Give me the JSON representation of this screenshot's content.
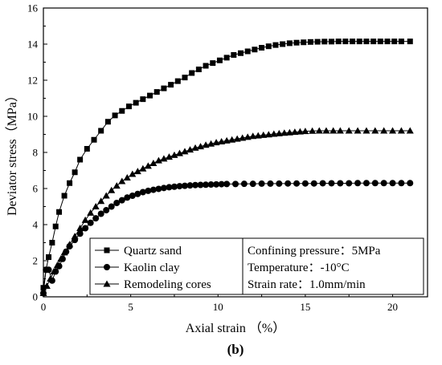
{
  "chart_data": {
    "type": "line",
    "xlabel": "Axial strain （%）",
    "ylabel": "Deviator stress（MPa）",
    "panel_label": "(b)",
    "xlim": [
      0,
      22
    ],
    "ylim": [
      0,
      16
    ],
    "x_ticks": [
      0,
      5,
      10,
      15,
      20
    ],
    "y_ticks": [
      0,
      2,
      4,
      6,
      8,
      10,
      12,
      14,
      16
    ],
    "grid": false,
    "legend_position": "bottom-left",
    "series": [
      {
        "name": "Quartz sand",
        "marker": "square",
        "x": [
          0,
          0.15,
          0.3,
          0.5,
          0.7,
          0.9,
          1.2,
          1.5,
          1.8,
          2.1,
          2.5,
          2.9,
          3.3,
          3.7,
          4.1,
          4.5,
          4.9,
          5.3,
          5.7,
          6.1,
          6.5,
          6.9,
          7.3,
          7.7,
          8.1,
          8.5,
          8.9,
          9.3,
          9.7,
          10.1,
          10.5,
          10.9,
          11.3,
          11.7,
          12.1,
          12.5,
          12.9,
          13.3,
          13.7,
          14.1,
          14.5,
          14.9,
          15.3,
          15.7,
          16.1,
          16.5,
          16.9,
          17.3,
          17.7,
          18.1,
          18.5,
          18.9,
          19.3,
          19.7,
          20.1,
          20.5,
          21
        ],
        "y": [
          0.5,
          1.5,
          2.2,
          3.0,
          3.9,
          4.7,
          5.6,
          6.3,
          6.9,
          7.6,
          8.2,
          8.7,
          9.2,
          9.7,
          10.05,
          10.3,
          10.55,
          10.75,
          10.95,
          11.15,
          11.35,
          11.55,
          11.75,
          11.95,
          12.15,
          12.4,
          12.6,
          12.8,
          12.95,
          13.1,
          13.25,
          13.4,
          13.5,
          13.6,
          13.7,
          13.8,
          13.88,
          13.95,
          14.0,
          14.05,
          14.08,
          14.1,
          14.12,
          14.13,
          14.14,
          14.14,
          14.15,
          14.15,
          14.15,
          14.15,
          14.15,
          14.15,
          14.15,
          14.15,
          14.15,
          14.15,
          14.15
        ]
      },
      {
        "name": "Kaolin clay",
        "marker": "circle",
        "x": [
          0,
          0.15,
          0.3,
          0.5,
          0.7,
          0.9,
          1.1,
          1.3,
          1.5,
          1.8,
          2.1,
          2.4,
          2.7,
          3.0,
          3.3,
          3.6,
          3.9,
          4.2,
          4.5,
          4.8,
          5.1,
          5.4,
          5.7,
          6.0,
          6.3,
          6.6,
          6.9,
          7.2,
          7.5,
          7.8,
          8.1,
          8.4,
          8.7,
          9.0,
          9.3,
          9.6,
          9.9,
          10.2,
          10.5,
          11,
          11.5,
          12,
          12.5,
          13,
          13.5,
          14,
          14.5,
          15,
          15.5,
          16,
          16.5,
          17,
          17.5,
          18,
          18.5,
          19,
          19.5,
          20,
          20.5,
          21
        ],
        "y": [
          0.2,
          1.5,
          1.5,
          0.9,
          1.4,
          1.7,
          2.1,
          2.5,
          2.8,
          3.15,
          3.5,
          3.8,
          4.1,
          4.35,
          4.6,
          4.8,
          5.0,
          5.2,
          5.35,
          5.5,
          5.6,
          5.7,
          5.8,
          5.87,
          5.93,
          5.98,
          6.03,
          6.07,
          6.1,
          6.13,
          6.15,
          6.17,
          6.19,
          6.2,
          6.21,
          6.22,
          6.23,
          6.24,
          6.25,
          6.25,
          6.26,
          6.26,
          6.27,
          6.27,
          6.27,
          6.28,
          6.28,
          6.28,
          6.28,
          6.29,
          6.29,
          6.29,
          6.29,
          6.3,
          6.3,
          6.3,
          6.3,
          6.3,
          6.3,
          6.3
        ]
      },
      {
        "name": "Remodeling cores",
        "marker": "triangle",
        "x": [
          0,
          0.2,
          0.4,
          0.6,
          0.8,
          1.0,
          1.2,
          1.5,
          1.8,
          2.1,
          2.4,
          2.7,
          3.0,
          3.3,
          3.6,
          3.9,
          4.2,
          4.5,
          4.8,
          5.1,
          5.4,
          5.7,
          6.0,
          6.3,
          6.6,
          6.9,
          7.2,
          7.5,
          7.8,
          8.1,
          8.4,
          8.7,
          9.0,
          9.3,
          9.6,
          9.9,
          10.2,
          10.5,
          10.8,
          11.1,
          11.4,
          11.7,
          12.0,
          12.3,
          12.6,
          12.9,
          13.2,
          13.5,
          13.8,
          14.1,
          14.4,
          14.7,
          15.0,
          15.4,
          15.8,
          16.2,
          16.6,
          17,
          17.5,
          18,
          18.5,
          19,
          19.5,
          20,
          20.5,
          21
        ],
        "y": [
          0.2,
          0.6,
          1.0,
          1.4,
          1.75,
          2.1,
          2.45,
          2.9,
          3.35,
          3.8,
          4.25,
          4.65,
          5.0,
          5.3,
          5.6,
          5.9,
          6.15,
          6.4,
          6.6,
          6.8,
          6.95,
          7.1,
          7.25,
          7.4,
          7.55,
          7.65,
          7.75,
          7.85,
          7.95,
          8.05,
          8.15,
          8.25,
          8.33,
          8.41,
          8.48,
          8.55,
          8.6,
          8.65,
          8.7,
          8.75,
          8.8,
          8.85,
          8.9,
          8.93,
          8.96,
          8.99,
          9.02,
          9.05,
          9.08,
          9.1,
          9.13,
          9.15,
          9.17,
          9.19,
          9.2,
          9.2,
          9.2,
          9.2,
          9.2,
          9.2,
          9.2,
          9.2,
          9.2,
          9.2,
          9.2,
          9.2
        ]
      }
    ],
    "annotations": [
      "Confining pressure：5MPa",
      "Temperature：-10°C",
      "Strain rate：1.0mm/min"
    ]
  }
}
